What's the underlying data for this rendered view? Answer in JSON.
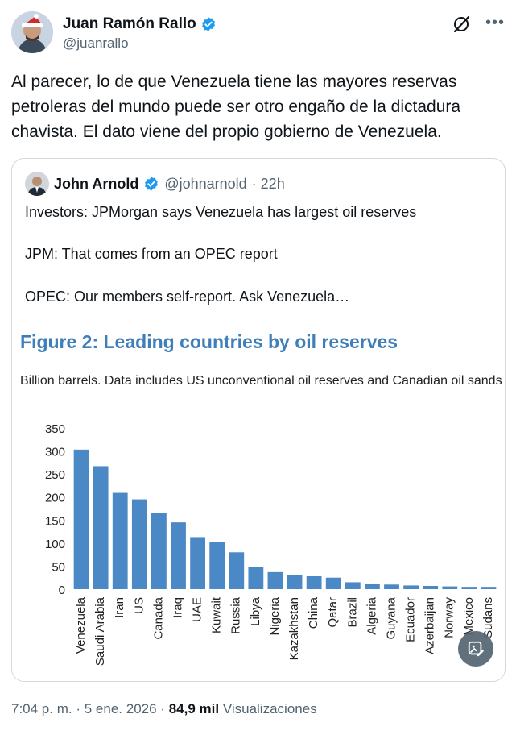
{
  "author": {
    "display_name": "Juan Ramón Rallo",
    "handle": "@juanrallo"
  },
  "icons": {
    "verified": "verified-badge-icon",
    "grok": "grok-icon",
    "more": "more-icon",
    "image_edit": "image-edit-icon"
  },
  "colors": {
    "verified": "#1d9bf0",
    "bar": "#4a89c5",
    "figure_title": "#3f7fb9"
  },
  "tweet": {
    "text": "Al parecer, lo de que Venezuela tiene las mayores reservas petroleras del mundo puede ser otro engaño de la dictadura chavista. El dato viene del propio gobierno de Venezuela."
  },
  "quote": {
    "display_name": "John Arnold",
    "handle": "@johnarnold",
    "time": "· 22h",
    "lines": [
      "Investors: JPMorgan says Venezuela has largest oil reserves",
      "JPM: That comes from an OPEC report",
      "OPEC: Our members self-report. Ask Venezuela…"
    ]
  },
  "chart_data": {
    "type": "bar",
    "title": "Figure 2: Leading countries by oil reserves",
    "subtitle": "Billion barrels. Data includes US unconventional oil reserves and Canadian oil sands",
    "categories": [
      "Venezuela",
      "Saudi Arabia",
      "Iran",
      "US",
      "Canada",
      "Iraq",
      "UAE",
      "Kuwait",
      "Russia",
      "Libya",
      "Nigeria",
      "Kazakhstan",
      "China",
      "Qatar",
      "Brazil",
      "Algeria",
      "Guyana",
      "Ecuador",
      "Azerbaijan",
      "Norway",
      "Mexico",
      "Sudans"
    ],
    "values": [
      303,
      267,
      209,
      195,
      165,
      145,
      113,
      102,
      80,
      48,
      37,
      30,
      28,
      25,
      15,
      12,
      10,
      8,
      7,
      6,
      5,
      5
    ],
    "yticks": [
      0,
      50,
      100,
      150,
      200,
      250,
      300,
      350
    ],
    "ylim": [
      0,
      350
    ],
    "grid": false,
    "legend": false
  },
  "meta": {
    "time": "7:04 p. m.",
    "sep1": "·",
    "date": "5 ene. 2026",
    "sep2": "·",
    "views": "84,9 mil",
    "views_label": "Visualizaciones"
  }
}
